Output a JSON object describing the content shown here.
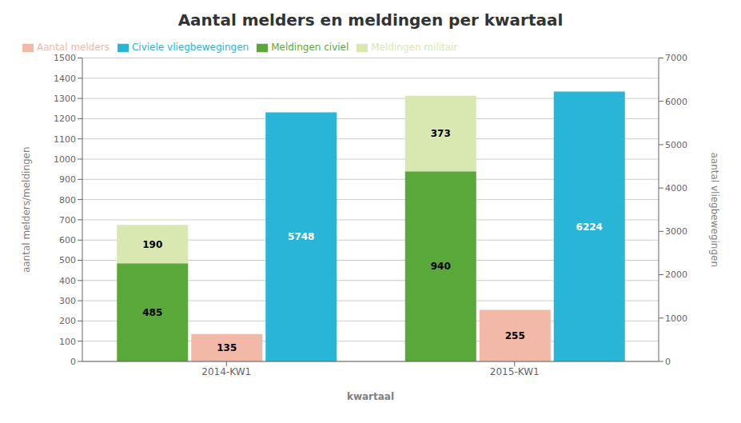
{
  "chart_data": {
    "type": "bar",
    "title": "Aantal melders en meldingen per kwartaal",
    "categories": [
      "2014-KW1",
      "2015-KW1"
    ],
    "xlabel": "kwartaal",
    "ylabel": "aantal melders/meldingen",
    "y2label": "aantal vliegbewegingen",
    "ylim": [
      0,
      1500
    ],
    "yticks": [
      0,
      100,
      200,
      300,
      400,
      500,
      600,
      700,
      800,
      900,
      1000,
      1100,
      1200,
      1300,
      1400,
      1500
    ],
    "y2lim": [
      0,
      7000
    ],
    "y2ticks": [
      0,
      1000,
      2000,
      3000,
      4000,
      5000,
      6000,
      7000
    ],
    "grid": true,
    "legend": "upper left",
    "data_labels": true,
    "series": [
      {
        "name": "Meldingen civiel",
        "color": "#5ba83a",
        "values": [
          485,
          940
        ],
        "stacked": true
      },
      {
        "name": "Meldingen militair",
        "color": "#d9e8b0",
        "values": [
          190,
          373
        ],
        "stacked": true
      },
      {
        "name": "Aantal melders",
        "color": "#f2b8a8",
        "values": [
          135,
          255
        ]
      },
      {
        "name": "Civiele vliegbewegingen",
        "color": "#29b5d5",
        "values": [
          5748,
          6224
        ],
        "axis": "y2"
      }
    ]
  }
}
